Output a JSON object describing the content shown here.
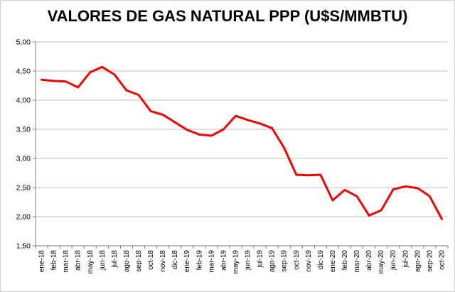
{
  "chart_data": {
    "type": "line",
    "title": "VALORES DE GAS NATURAL PPP (U$S/MMBTU)",
    "xlabel": "",
    "ylabel": "",
    "ylim": [
      1.5,
      5.0
    ],
    "yticks": [
      "1,50",
      "2,00",
      "2,50",
      "3,00",
      "3,50",
      "4,00",
      "4,50",
      "5,00"
    ],
    "grid": true,
    "legend": "none",
    "categories": [
      "ene-18",
      "feb-18",
      "mar-18",
      "abr-18",
      "may-18",
      "jun-18",
      "jul-18",
      "ago-18",
      "sep-18",
      "oct-18",
      "nov-18",
      "dic-18",
      "ene-19",
      "feb-19",
      "mar-19",
      "abr-19",
      "may-19",
      "jun-19",
      "jul-19",
      "ago-19",
      "sep-19",
      "oct-19",
      "nov-19",
      "dic-19",
      "ene-20",
      "feb-20",
      "mar-20",
      "abr-20",
      "may-20",
      "jun-20",
      "jul-20",
      "ago-20",
      "sep-20",
      "oct-20"
    ],
    "series": [
      {
        "color": "#ee0000",
        "values": [
          4.35,
          4.33,
          4.32,
          4.22,
          4.48,
          4.57,
          4.44,
          4.17,
          4.09,
          3.81,
          3.75,
          3.62,
          3.49,
          3.41,
          3.39,
          3.5,
          3.73,
          3.66,
          3.6,
          3.52,
          3.18,
          2.72,
          2.71,
          2.72,
          2.28,
          2.46,
          2.35,
          2.02,
          2.11,
          2.47,
          2.52,
          2.49,
          2.35,
          1.96
        ]
      }
    ]
  }
}
